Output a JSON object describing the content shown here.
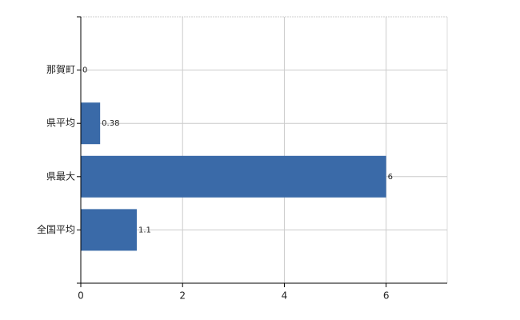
{
  "chart_data": {
    "type": "hbar",
    "categories": [
      "那賀町",
      "県平均",
      "県最大",
      "全国平均"
    ],
    "values": [
      0,
      0.38,
      6,
      1.1
    ],
    "color": "#3a6aa8",
    "xlim": [
      0,
      7.2
    ],
    "xticks": [
      0,
      2,
      4,
      6
    ],
    "grid": true
  }
}
